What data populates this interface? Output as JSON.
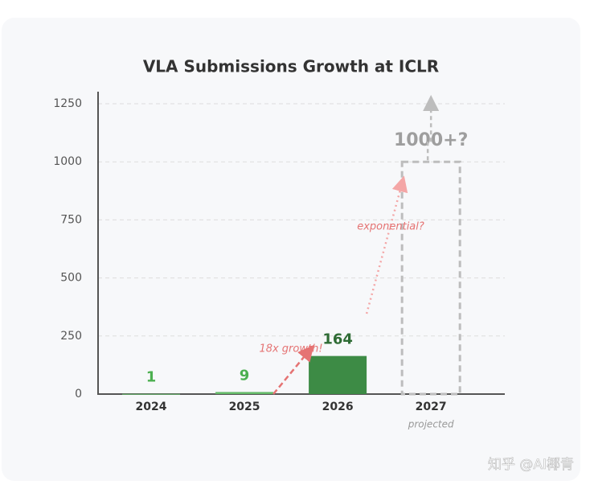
{
  "chart_data": {
    "type": "bar",
    "title": "VLA Submissions Growth at ICLR",
    "categories": [
      "2024",
      "2025",
      "2026",
      "2027"
    ],
    "values": [
      1,
      9,
      164,
      1000
    ],
    "value_labels": [
      "1",
      "9",
      "164",
      "1000+?"
    ],
    "colors": [
      "#66bb6a",
      "#66bb6a",
      "#3d8b45",
      "#bdbdbd"
    ],
    "label_colors": [
      "#4caf50",
      "#4caf50",
      "#2e6b34",
      "#9e9e9e"
    ],
    "styles": [
      "solid",
      "solid",
      "solid",
      "dashed"
    ],
    "ylim": [
      0,
      1250
    ],
    "yticks": [
      0,
      250,
      500,
      750,
      1000,
      1250
    ],
    "grid": true,
    "annotations": {
      "growth": "18x growth!",
      "exponential": "exponential?",
      "projected": "projected"
    }
  },
  "watermark": "知乎 @AI椰青"
}
